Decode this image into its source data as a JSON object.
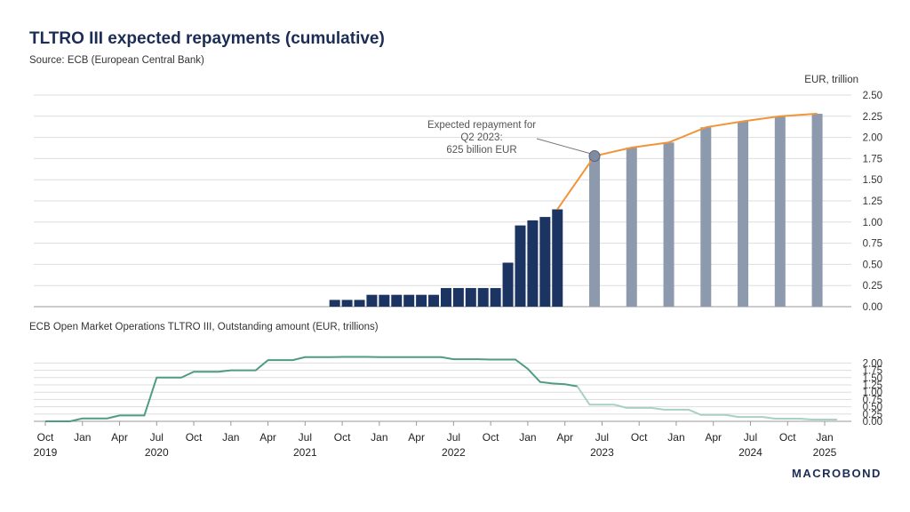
{
  "header": {
    "title": "TLTRO III expected repayments (cumulative)",
    "source": "Source: ECB (European Central Bank)",
    "logo": "MACROBOND"
  },
  "chart_data": [
    {
      "type": "bar",
      "unit_label": "EUR, trillion",
      "ylim": [
        0,
        2.5
      ],
      "yticks": [
        "0.00",
        "0.25",
        "0.50",
        "0.75",
        "1.00",
        "1.25",
        "1.50",
        "1.75",
        "2.00",
        "2.25",
        "2.50"
      ],
      "grid": true,
      "actual_bars": {
        "color": "#1c3461",
        "months": [
          "2021-09",
          "2021-10",
          "2021-11",
          "2021-12",
          "2022-01",
          "2022-02",
          "2022-03",
          "2022-04",
          "2022-05",
          "2022-06",
          "2022-07",
          "2022-08",
          "2022-09",
          "2022-10",
          "2022-11",
          "2022-12",
          "2023-01",
          "2023-02",
          "2023-03"
        ],
        "values": [
          0.08,
          0.08,
          0.08,
          0.14,
          0.14,
          0.14,
          0.14,
          0.14,
          0.14,
          0.22,
          0.22,
          0.22,
          0.22,
          0.22,
          0.52,
          0.96,
          1.02,
          1.06,
          1.15
        ]
      },
      "expected_bars": {
        "color": "#8d99ad",
        "months": [
          "2023-06",
          "2023-09",
          "2023-12",
          "2024-03",
          "2024-06",
          "2024-09",
          "2024-12"
        ],
        "values": [
          1.78,
          1.88,
          1.94,
          2.12,
          2.19,
          2.25,
          2.28
        ]
      },
      "expected_line": {
        "color": "#f0953a",
        "months": [
          "2023-03",
          "2023-06",
          "2023-09",
          "2023-12",
          "2024-03",
          "2024-06",
          "2024-09",
          "2024-12"
        ],
        "values": [
          1.15,
          1.78,
          1.88,
          1.94,
          2.12,
          2.19,
          2.25,
          2.28
        ]
      },
      "annotation": {
        "lines": [
          "Expected repayment for",
          "Q2 2023:",
          "625 billion EUR"
        ],
        "month": "2023-06",
        "value": 1.78
      }
    },
    {
      "type": "line",
      "title": "ECB Open Market Operations TLTRO III, Outstanding amount (EUR, trillions)",
      "ylim": [
        0,
        2.5
      ],
      "yticks": [
        "0.00",
        "0.25",
        "0.50",
        "0.75",
        "1.00",
        "1.25",
        "1.50",
        "1.75",
        "2.00"
      ],
      "grid": true,
      "actual": {
        "color": "#4e9c82",
        "points": [
          [
            "2019-10",
            0.0
          ],
          [
            "2019-12",
            0.0
          ],
          [
            "2020-01",
            0.1
          ],
          [
            "2020-03",
            0.1
          ],
          [
            "2020-04",
            0.2
          ],
          [
            "2020-06",
            0.2
          ],
          [
            "2020-07",
            1.5
          ],
          [
            "2020-09",
            1.5
          ],
          [
            "2020-10",
            1.7
          ],
          [
            "2020-12",
            1.7
          ],
          [
            "2021-01",
            1.75
          ],
          [
            "2021-03",
            1.75
          ],
          [
            "2021-04",
            2.1
          ],
          [
            "2021-06",
            2.1
          ],
          [
            "2021-07",
            2.2
          ],
          [
            "2021-09",
            2.2
          ],
          [
            "2021-10",
            2.21
          ],
          [
            "2021-12",
            2.21
          ],
          [
            "2022-01",
            2.2
          ],
          [
            "2022-06",
            2.2
          ],
          [
            "2022-07",
            2.13
          ],
          [
            "2022-09",
            2.13
          ],
          [
            "2022-10",
            2.12
          ],
          [
            "2022-12",
            2.12
          ],
          [
            "2023-01",
            1.8
          ],
          [
            "2023-02",
            1.35
          ],
          [
            "2023-03",
            1.3
          ],
          [
            "2023-04",
            1.27
          ],
          [
            "2023-05",
            1.2
          ]
        ]
      },
      "expected": {
        "color": "#a9d1c2",
        "points": [
          [
            "2023-05",
            1.2
          ],
          [
            "2023-06",
            0.57
          ],
          [
            "2023-08",
            0.57
          ],
          [
            "2023-09",
            0.46
          ],
          [
            "2023-11",
            0.46
          ],
          [
            "2023-12",
            0.4
          ],
          [
            "2024-02",
            0.4
          ],
          [
            "2024-03",
            0.22
          ],
          [
            "2024-05",
            0.22
          ],
          [
            "2024-06",
            0.15
          ],
          [
            "2024-08",
            0.15
          ],
          [
            "2024-09",
            0.09
          ],
          [
            "2024-11",
            0.09
          ],
          [
            "2024-12",
            0.06
          ],
          [
            "2025-02",
            0.06
          ]
        ]
      }
    }
  ],
  "x_axis": {
    "months": [
      {
        "label": "Oct",
        "year": "2019",
        "date": "2019-10"
      },
      {
        "label": "Jan",
        "year": "",
        "date": "2020-01"
      },
      {
        "label": "Apr",
        "year": "",
        "date": "2020-04"
      },
      {
        "label": "Jul",
        "year": "2020",
        "date": "2020-07"
      },
      {
        "label": "Oct",
        "year": "",
        "date": "2020-10"
      },
      {
        "label": "Jan",
        "year": "",
        "date": "2021-01"
      },
      {
        "label": "Apr",
        "year": "",
        "date": "2021-04"
      },
      {
        "label": "Jul",
        "year": "2021",
        "date": "2021-07"
      },
      {
        "label": "Oct",
        "year": "",
        "date": "2021-10"
      },
      {
        "label": "Jan",
        "year": "",
        "date": "2022-01"
      },
      {
        "label": "Apr",
        "year": "",
        "date": "2022-04"
      },
      {
        "label": "Jul",
        "year": "2022",
        "date": "2022-07"
      },
      {
        "label": "Oct",
        "year": "",
        "date": "2022-10"
      },
      {
        "label": "Jan",
        "year": "",
        "date": "2023-01"
      },
      {
        "label": "Apr",
        "year": "",
        "date": "2023-04"
      },
      {
        "label": "Jul",
        "year": "2023",
        "date": "2023-07"
      },
      {
        "label": "Oct",
        "year": "",
        "date": "2023-10"
      },
      {
        "label": "Jan",
        "year": "",
        "date": "2024-01"
      },
      {
        "label": "Apr",
        "year": "",
        "date": "2024-04"
      },
      {
        "label": "Jul",
        "year": "2024",
        "date": "2024-07"
      },
      {
        "label": "Oct",
        "year": "",
        "date": "2024-10"
      },
      {
        "label": "Jan",
        "year": "2025",
        "date": "2025-01"
      }
    ]
  }
}
